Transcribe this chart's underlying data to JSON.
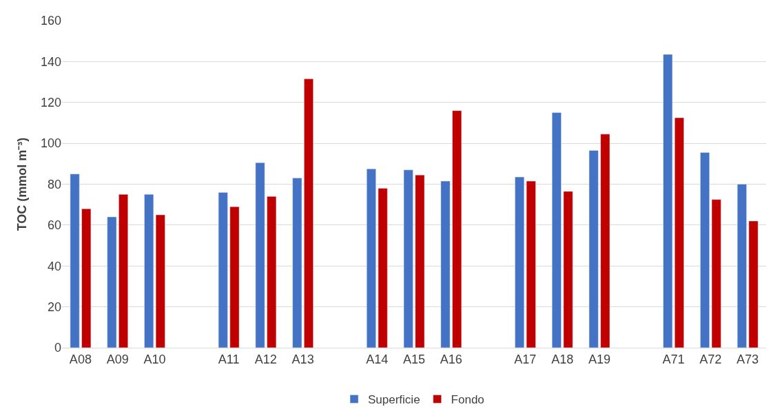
{
  "chart_data": {
    "type": "bar",
    "ylabel": "TOC (mmol m⁻³)",
    "categories": [
      "A08",
      "A09",
      "A10",
      null,
      "A11",
      "A12",
      "A13",
      null,
      "A14",
      "A15",
      "A16",
      null,
      "A17",
      "A18",
      "A19",
      null,
      "A71",
      "A72",
      "A73"
    ],
    "series": [
      {
        "name": "Superficie",
        "color": "#4472c4",
        "values": [
          85,
          64,
          75,
          null,
          76,
          90.5,
          83,
          null,
          87.5,
          87,
          81.5,
          null,
          83.5,
          115,
          96.5,
          null,
          143.5,
          95.5,
          80
        ]
      },
      {
        "name": "Fondo",
        "color": "#c00000",
        "values": [
          68,
          75,
          65,
          null,
          69,
          74,
          131.5,
          null,
          78,
          84.5,
          116,
          null,
          81.5,
          76.5,
          104.5,
          null,
          112.5,
          72.5,
          62
        ]
      }
    ],
    "ylim": [
      0,
      160
    ],
    "yticks": [
      0,
      20,
      40,
      60,
      80,
      100,
      120,
      140,
      160
    ],
    "grid": "y",
    "legend": "bottom"
  }
}
